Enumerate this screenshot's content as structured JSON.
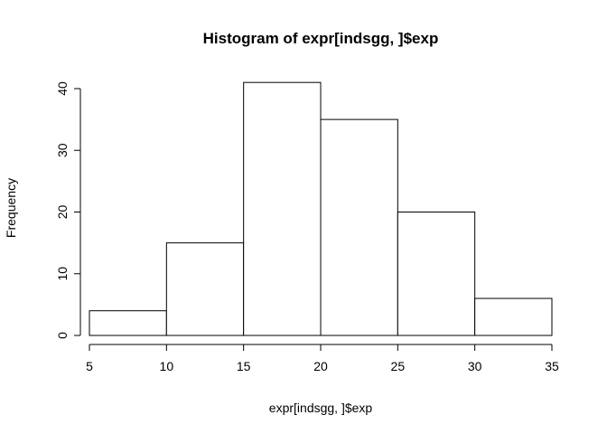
{
  "chart_data": {
    "type": "bar",
    "title": "Histogram of expr[indsgg, ]$exp",
    "xlabel": "expr[indsgg, ]$exp",
    "ylabel": "Frequency",
    "bins": [
      {
        "start": 5,
        "end": 10,
        "count": 4
      },
      {
        "start": 10,
        "end": 15,
        "count": 15
      },
      {
        "start": 15,
        "end": 20,
        "count": 41
      },
      {
        "start": 20,
        "end": 25,
        "count": 35
      },
      {
        "start": 25,
        "end": 30,
        "count": 20
      },
      {
        "start": 30,
        "end": 35,
        "count": 6
      }
    ],
    "xlim": [
      5,
      35
    ],
    "ylim": [
      0,
      40
    ],
    "x_ticks": [
      "5",
      "10",
      "15",
      "20",
      "25",
      "30",
      "35"
    ],
    "y_ticks": [
      "0",
      "10",
      "20",
      "30",
      "40"
    ],
    "grid": false,
    "legend": "none",
    "colors": {
      "bar_fill": "#ffffff",
      "bar_stroke": "#000000"
    }
  }
}
